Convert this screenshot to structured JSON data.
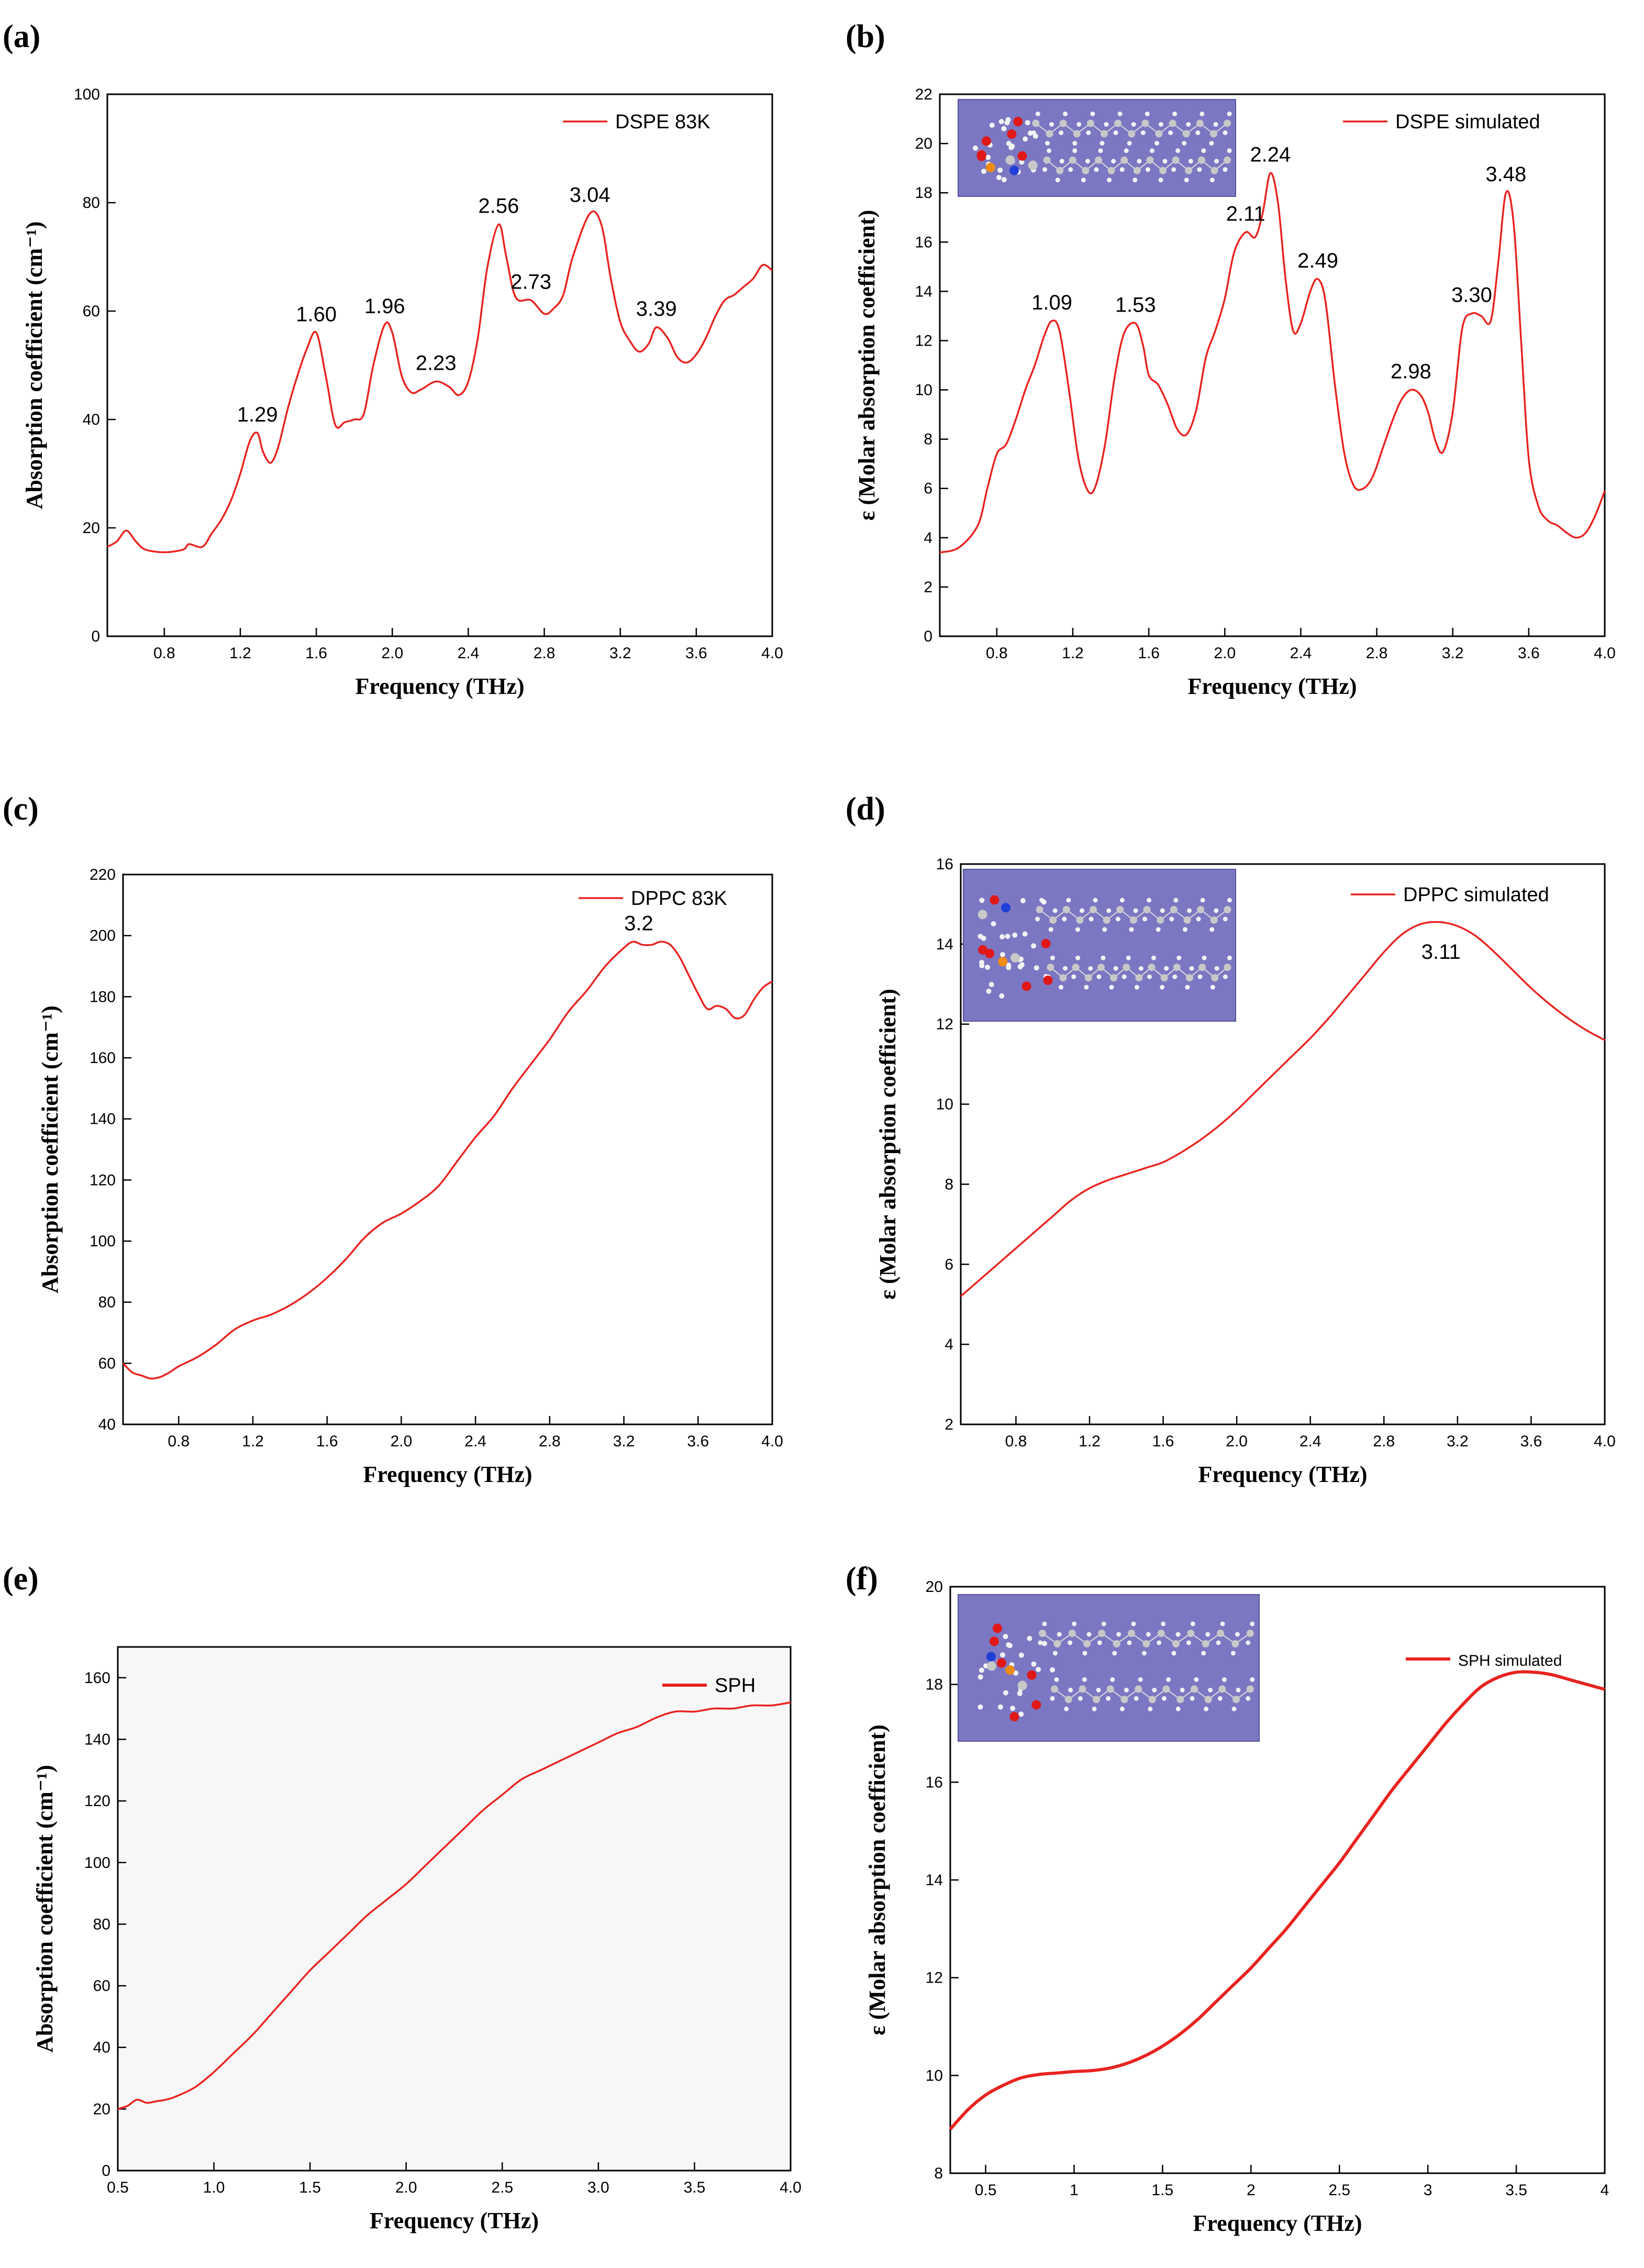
{
  "chart_data": [
    {
      "panel": "(a)",
      "type": "line",
      "xlabel": "Frequency (THz)",
      "ylabel": "Absorption coefficient (cm⁻¹)",
      "xlim": [
        0.5,
        4.0
      ],
      "ylim": [
        0,
        100
      ],
      "xticks": [
        0.8,
        1.2,
        1.6,
        2.0,
        2.4,
        2.8,
        3.2,
        3.6,
        4.0
      ],
      "xtick_labels": [
        "0.8",
        "1.2",
        "1.6",
        "2.0",
        "2.4",
        "2.8",
        "3.2",
        "3.6",
        "4.0"
      ],
      "yticks": [
        0,
        20,
        40,
        60,
        80,
        100
      ],
      "ytick_labels": [
        "0",
        "20",
        "40",
        "60",
        "80",
        "100"
      ],
      "legend_position": "top-right",
      "inset_molecule": false,
      "series": [
        {
          "name": "DSPE 83K",
          "color": "#e8231f",
          "x": [
            0.5,
            0.55,
            0.6,
            0.65,
            0.7,
            0.8,
            0.9,
            0.93,
            1.0,
            1.05,
            1.1,
            1.15,
            1.2,
            1.25,
            1.29,
            1.32,
            1.36,
            1.4,
            1.45,
            1.5,
            1.55,
            1.6,
            1.65,
            1.7,
            1.75,
            1.8,
            1.85,
            1.9,
            1.96,
            2.0,
            2.05,
            2.1,
            2.15,
            2.23,
            2.3,
            2.35,
            2.4,
            2.45,
            2.5,
            2.56,
            2.6,
            2.65,
            2.73,
            2.8,
            2.85,
            2.9,
            2.95,
            3.04,
            3.1,
            3.15,
            3.2,
            3.25,
            3.3,
            3.35,
            3.39,
            3.45,
            3.5,
            3.55,
            3.6,
            3.65,
            3.7,
            3.75,
            3.8,
            3.85,
            3.9,
            3.95,
            4.0
          ],
          "y": [
            16.5,
            17.5,
            19.5,
            17.5,
            16,
            15.5,
            16,
            17,
            16.5,
            19,
            21.5,
            25,
            30,
            36,
            37.5,
            34,
            32,
            35,
            42,
            48,
            53,
            56,
            48,
            39,
            39.5,
            40,
            41,
            50,
            57.5,
            56,
            48,
            45,
            45.5,
            47,
            46,
            44.5,
            47,
            55,
            68,
            76,
            70,
            62.5,
            62,
            59.5,
            60.5,
            63,
            70,
            78,
            76,
            66,
            58,
            54.5,
            52.5,
            54,
            57,
            55,
            51.5,
            50.5,
            52,
            55,
            59,
            62,
            63,
            64.5,
            66,
            68.5,
            67.5
          ]
        }
      ],
      "annotations": [
        {
          "x": 1.29,
          "y": 37.5,
          "text": "1.29"
        },
        {
          "x": 1.6,
          "y": 56,
          "text": "1.60"
        },
        {
          "x": 1.96,
          "y": 57.5,
          "text": "1.96"
        },
        {
          "x": 2.23,
          "y": 47,
          "text": "2.23"
        },
        {
          "x": 2.56,
          "y": 76,
          "text": "2.56"
        },
        {
          "x": 2.73,
          "y": 62,
          "text": "2.73"
        },
        {
          "x": 3.04,
          "y": 78,
          "text": "3.04"
        },
        {
          "x": 3.39,
          "y": 57,
          "text": "3.39"
        }
      ]
    },
    {
      "panel": "(b)",
      "type": "line",
      "xlabel": "Frequency (THz)",
      "ylabel": "ε (Molar absorption coefficient)",
      "xlim": [
        0.5,
        4.0
      ],
      "ylim": [
        0,
        22
      ],
      "xticks": [
        0.8,
        1.2,
        1.6,
        2.0,
        2.4,
        2.8,
        3.2,
        3.6,
        4.0
      ],
      "xtick_labels": [
        "0.8",
        "1.2",
        "1.6",
        "2.0",
        "2.4",
        "2.8",
        "3.2",
        "3.6",
        "4.0"
      ],
      "yticks": [
        0,
        2,
        4,
        6,
        8,
        10,
        12,
        14,
        16,
        18,
        20,
        22
      ],
      "ytick_labels": [
        "0",
        "2",
        "4",
        "6",
        "8",
        "10",
        "12",
        "14",
        "16",
        "18",
        "20",
        "22"
      ],
      "legend_position": "top-right",
      "inset_molecule": true,
      "series": [
        {
          "name": "DSPE simulated",
          "color": "#e8231f",
          "x": [
            0.5,
            0.6,
            0.7,
            0.75,
            0.8,
            0.85,
            0.9,
            0.95,
            1.0,
            1.05,
            1.09,
            1.13,
            1.18,
            1.23,
            1.28,
            1.32,
            1.37,
            1.42,
            1.47,
            1.53,
            1.57,
            1.6,
            1.65,
            1.7,
            1.75,
            1.8,
            1.85,
            1.9,
            1.95,
            2.0,
            2.05,
            2.11,
            2.16,
            2.2,
            2.24,
            2.28,
            2.32,
            2.36,
            2.4,
            2.45,
            2.49,
            2.53,
            2.58,
            2.63,
            2.68,
            2.73,
            2.78,
            2.83,
            2.88,
            2.93,
            2.98,
            3.03,
            3.07,
            3.11,
            3.15,
            3.2,
            3.25,
            3.3,
            3.35,
            3.4,
            3.44,
            3.48,
            3.52,
            3.56,
            3.6,
            3.65,
            3.7,
            3.75,
            3.8,
            3.85,
            3.9,
            3.95,
            4.0
          ],
          "y": [
            3.4,
            3.6,
            4.5,
            6,
            7.4,
            7.8,
            8.8,
            10,
            11,
            12.2,
            12.8,
            12.4,
            10,
            7.2,
            5.9,
            6.1,
            7.8,
            10.5,
            12.3,
            12.7,
            11.8,
            10.6,
            10.2,
            9.4,
            8.4,
            8.2,
            9.2,
            11.3,
            12.4,
            13.7,
            15.6,
            16.4,
            16.2,
            17.2,
            18.8,
            17.6,
            14.5,
            12.4,
            12.7,
            14,
            14.5,
            13.6,
            10.2,
            7.4,
            6.1,
            6,
            6.5,
            7.6,
            8.7,
            9.6,
            10,
            9.8,
            9.1,
            7.9,
            7.5,
            9.1,
            12.5,
            13.1,
            13,
            12.8,
            15.2,
            18,
            16.8,
            12,
            7.2,
            5.3,
            4.7,
            4.5,
            4.2,
            4,
            4.2,
            4.9,
            5.9
          ]
        }
      ],
      "annotations": [
        {
          "x": 1.09,
          "y": 12.8,
          "text": "1.09"
        },
        {
          "x": 1.53,
          "y": 12.7,
          "text": "1.53"
        },
        {
          "x": 2.11,
          "y": 16.4,
          "text": "2.11"
        },
        {
          "x": 2.24,
          "y": 18.8,
          "text": "2.24"
        },
        {
          "x": 2.49,
          "y": 14.5,
          "text": "2.49"
        },
        {
          "x": 2.98,
          "y": 10,
          "text": "2.98"
        },
        {
          "x": 3.3,
          "y": 13.1,
          "text": "3.30"
        },
        {
          "x": 3.48,
          "y": 18,
          "text": "3.48"
        }
      ]
    },
    {
      "panel": "(c)",
      "type": "line",
      "xlabel": "Frequency (THz)",
      "ylabel": "Absorption coefficient (cm⁻¹)",
      "xlim": [
        0.5,
        4.0
      ],
      "ylim": [
        40,
        220
      ],
      "xticks": [
        0.8,
        1.2,
        1.6,
        2.0,
        2.4,
        2.8,
        3.2,
        3.6,
        4.0
      ],
      "xtick_labels": [
        "0.8",
        "1.2",
        "1.6",
        "2.0",
        "2.4",
        "2.8",
        "3.2",
        "3.6",
        "4.0"
      ],
      "yticks": [
        40,
        60,
        80,
        100,
        120,
        140,
        160,
        180,
        200,
        220
      ],
      "ytick_labels": [
        "40",
        "60",
        "80",
        "100",
        "120",
        "140",
        "160",
        "180",
        "200",
        "220"
      ],
      "legend_position": "top-right",
      "inset_molecule": false,
      "series": [
        {
          "name": "DPPC 83K",
          "color": "#e8231f",
          "x": [
            0.5,
            0.55,
            0.6,
            0.65,
            0.7,
            0.75,
            0.8,
            0.9,
            1.0,
            1.1,
            1.2,
            1.3,
            1.4,
            1.5,
            1.6,
            1.7,
            1.8,
            1.9,
            2.0,
            2.1,
            2.2,
            2.3,
            2.4,
            2.5,
            2.6,
            2.7,
            2.8,
            2.9,
            3.0,
            3.1,
            3.2,
            3.25,
            3.3,
            3.35,
            3.4,
            3.45,
            3.5,
            3.55,
            3.6,
            3.65,
            3.7,
            3.75,
            3.8,
            3.85,
            3.9,
            3.95,
            4.0
          ],
          "y": [
            60,
            57,
            56,
            55,
            55.5,
            57,
            59,
            62,
            66,
            71,
            74,
            76,
            79,
            83,
            88,
            94,
            101,
            106,
            109,
            113,
            118,
            126,
            134,
            141,
            150,
            158,
            166,
            175,
            182,
            190,
            196,
            198,
            197,
            197,
            198,
            197,
            193,
            187,
            181,
            176,
            177,
            176,
            173,
            174,
            179,
            183,
            185
          ]
        }
      ],
      "annotations": [
        {
          "x": 3.28,
          "y": 198,
          "text": "3.2"
        }
      ]
    },
    {
      "panel": "(d)",
      "type": "line",
      "xlabel": "Frequency (THz)",
      "ylabel": "ε (Molar absorption coefficient)",
      "xlim": [
        0.5,
        4.0
      ],
      "ylim": [
        2,
        16
      ],
      "xticks": [
        0.8,
        1.2,
        1.6,
        2.0,
        2.4,
        2.8,
        3.2,
        3.6,
        4.0
      ],
      "xtick_labels": [
        "0.8",
        "1.2",
        "1.6",
        "2.0",
        "2.4",
        "2.8",
        "3.2",
        "3.6",
        "4.0"
      ],
      "yticks": [
        2,
        4,
        6,
        8,
        10,
        12,
        14,
        16
      ],
      "ytick_labels": [
        "2",
        "4",
        "6",
        "8",
        "10",
        "12",
        "14",
        "16"
      ],
      "legend_position": "top-right",
      "inset_molecule": true,
      "series": [
        {
          "name": "DPPC simulated",
          "color": "#e8231f",
          "x": [
            0.5,
            0.6,
            0.7,
            0.8,
            0.9,
            1.0,
            1.1,
            1.2,
            1.3,
            1.4,
            1.5,
            1.6,
            1.7,
            1.8,
            1.9,
            2.0,
            2.1,
            2.2,
            2.3,
            2.4,
            2.5,
            2.6,
            2.7,
            2.8,
            2.9,
            3.0,
            3.1,
            3.2,
            3.3,
            3.4,
            3.5,
            3.6,
            3.7,
            3.8,
            3.9,
            4.0
          ],
          "y": [
            5.2,
            5.6,
            6.0,
            6.4,
            6.8,
            7.2,
            7.6,
            7.9,
            8.1,
            8.25,
            8.4,
            8.55,
            8.8,
            9.1,
            9.45,
            9.85,
            10.3,
            10.75,
            11.2,
            11.65,
            12.15,
            12.7,
            13.25,
            13.8,
            14.25,
            14.5,
            14.55,
            14.45,
            14.2,
            13.8,
            13.35,
            12.9,
            12.5,
            12.15,
            11.85,
            11.6
          ]
        }
      ],
      "annotations": [
        {
          "x": 3.11,
          "y": 14.55,
          "text": "3.11"
        }
      ]
    },
    {
      "panel": "(e)",
      "type": "line",
      "xlabel": "Frequency (THz)",
      "ylabel": "Absorption coefficient (cm⁻¹)",
      "xlim": [
        0.5,
        4.0
      ],
      "ylim": [
        0,
        170
      ],
      "xticks": [
        0.5,
        1.0,
        1.5,
        2.0,
        2.5,
        3.0,
        3.5,
        4.0
      ],
      "xtick_labels": [
        "0.5",
        "1.0",
        "1.5",
        "2.0",
        "2.5",
        "3.0",
        "3.5",
        "4.0"
      ],
      "yticks": [
        0,
        20,
        40,
        60,
        80,
        100,
        120,
        140,
        160
      ],
      "ytick_labels": [
        "0",
        "20",
        "40",
        "60",
        "80",
        "100",
        "120",
        "140",
        "160"
      ],
      "legend_position": "top-right",
      "inset_molecule": false,
      "series": [
        {
          "name": "SPH",
          "color": "#e8231f",
          "x": [
            0.5,
            0.55,
            0.6,
            0.65,
            0.7,
            0.75,
            0.8,
            0.9,
            1.0,
            1.1,
            1.2,
            1.3,
            1.4,
            1.5,
            1.6,
            1.7,
            1.8,
            1.9,
            2.0,
            2.1,
            2.2,
            2.3,
            2.4,
            2.5,
            2.6,
            2.7,
            2.8,
            2.9,
            3.0,
            3.1,
            3.2,
            3.3,
            3.4,
            3.5,
            3.6,
            3.7,
            3.8,
            3.9,
            4.0
          ],
          "y": [
            20,
            21,
            23,
            22,
            22.5,
            23,
            24,
            27,
            32,
            38,
            44,
            51,
            58,
            65,
            71,
            77,
            83,
            88,
            93,
            99,
            105,
            111,
            117,
            122,
            127,
            130,
            133,
            136,
            139,
            142,
            144,
            147,
            149,
            149,
            150,
            150,
            151,
            151,
            152
          ]
        }
      ],
      "annotations": []
    },
    {
      "panel": "(f)",
      "type": "line",
      "xlabel": "Frequency (THz)",
      "ylabel": "ε (Molar absorption coefficient)",
      "xlim": [
        0.3,
        4.0
      ],
      "ylim": [
        8,
        20
      ],
      "xticks": [
        0.5,
        1,
        1.5,
        2,
        2.5,
        3,
        3.5,
        4
      ],
      "xtick_labels": [
        "0.5",
        "1",
        "1.5",
        "2",
        "2.5",
        "3",
        "3.5",
        "4"
      ],
      "yticks": [
        8,
        10,
        12,
        14,
        16,
        18,
        20
      ],
      "ytick_labels": [
        "8",
        "10",
        "12",
        "14",
        "16",
        "18",
        "20"
      ],
      "legend_position": "top-right",
      "inset_molecule": true,
      "series": [
        {
          "name": "SPH simulated",
          "color": "#e8231f",
          "x": [
            0.3,
            0.4,
            0.5,
            0.6,
            0.7,
            0.8,
            0.9,
            1.0,
            1.1,
            1.2,
            1.3,
            1.4,
            1.5,
            1.6,
            1.7,
            1.8,
            1.9,
            2.0,
            2.1,
            2.2,
            2.3,
            2.4,
            2.5,
            2.6,
            2.7,
            2.8,
            2.9,
            3.0,
            3.1,
            3.2,
            3.3,
            3.4,
            3.5,
            3.6,
            3.7,
            3.8,
            3.9,
            4.0
          ],
          "y": [
            8.9,
            9.3,
            9.6,
            9.8,
            9.95,
            10.02,
            10.05,
            10.08,
            10.1,
            10.15,
            10.25,
            10.4,
            10.6,
            10.85,
            11.15,
            11.5,
            11.85,
            12.2,
            12.6,
            13.0,
            13.45,
            13.9,
            14.35,
            14.85,
            15.35,
            15.85,
            16.3,
            16.75,
            17.2,
            17.6,
            17.95,
            18.15,
            18.25,
            18.25,
            18.2,
            18.1,
            18.0,
            17.9
          ]
        }
      ],
      "annotations": []
    }
  ],
  "colors": {
    "line": "#e8231f",
    "inset_background": "#7b77c2",
    "atom_carbon": "#c8c8c8",
    "atom_hydrogen": "#f2f2f2",
    "atom_oxygen": "#e01818",
    "atom_nitrogen": "#1f3fd6",
    "atom_phosphorus": "#f08c10"
  }
}
